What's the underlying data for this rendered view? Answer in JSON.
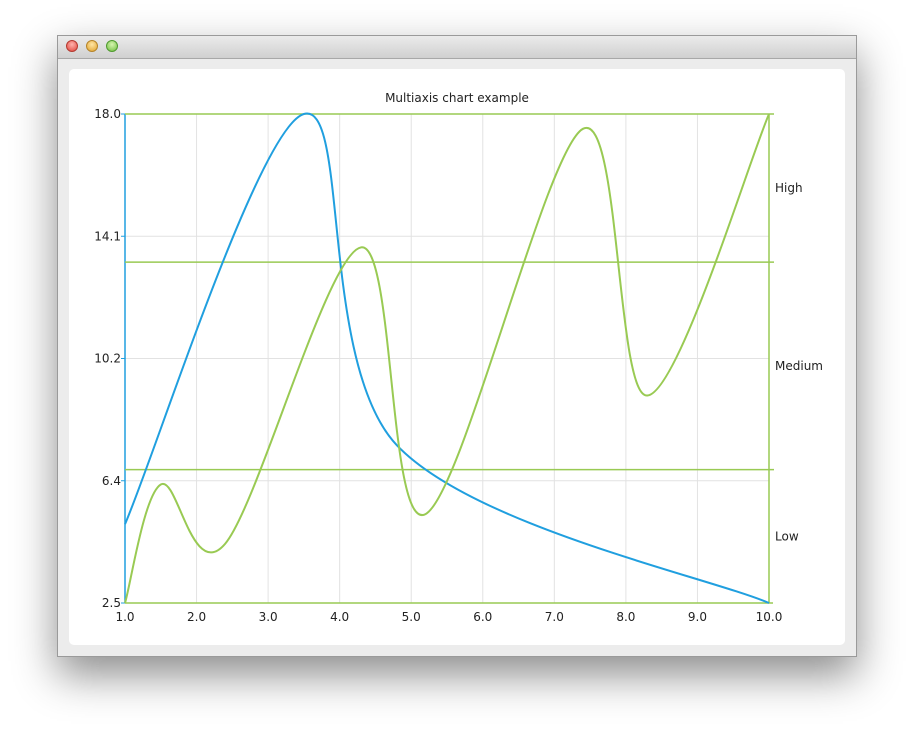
{
  "window": {
    "controls": [
      "close",
      "minimize",
      "zoom"
    ]
  },
  "chart_data": {
    "type": "line",
    "title": "Multiaxis chart example",
    "x_axis": {
      "range": [
        1,
        10
      ],
      "ticks": [
        "1.0",
        "2.0",
        "3.0",
        "4.0",
        "5.0",
        "6.0",
        "7.0",
        "8.0",
        "9.0",
        "10.0"
      ]
    },
    "y_axis_left": {
      "range": [
        2.5,
        18
      ],
      "ticks": [
        "2.5",
        "6.4",
        "10.2",
        "14.1",
        "18.0"
      ],
      "color": "#209fdf"
    },
    "y_axis_right": {
      "type": "category",
      "range": [
        0.5,
        17
      ],
      "categories": [
        {
          "label": "Low",
          "end": 5
        },
        {
          "label": "Medium",
          "end": 12
        },
        {
          "label": "High",
          "end": 17
        }
      ],
      "color": "#99ca53"
    },
    "series": [
      {
        "type": "spline",
        "axis": "left",
        "color": "#209fdf",
        "points": [
          [
            1,
            5
          ],
          [
            3.5,
            18
          ],
          [
            4.8,
            7.5
          ],
          [
            10,
            2.5
          ]
        ]
      },
      {
        "type": "spline",
        "axis": "right",
        "color": "#99ca53",
        "points": [
          [
            1,
            0.5
          ],
          [
            1.5,
            4.5
          ],
          [
            2.4,
            2.5
          ],
          [
            4.3,
            12.5
          ],
          [
            5.2,
            3.5
          ],
          [
            7.4,
            16.5
          ],
          [
            8.3,
            7.5
          ],
          [
            10,
            17
          ]
        ]
      }
    ],
    "grid": true,
    "legend": "none"
  }
}
